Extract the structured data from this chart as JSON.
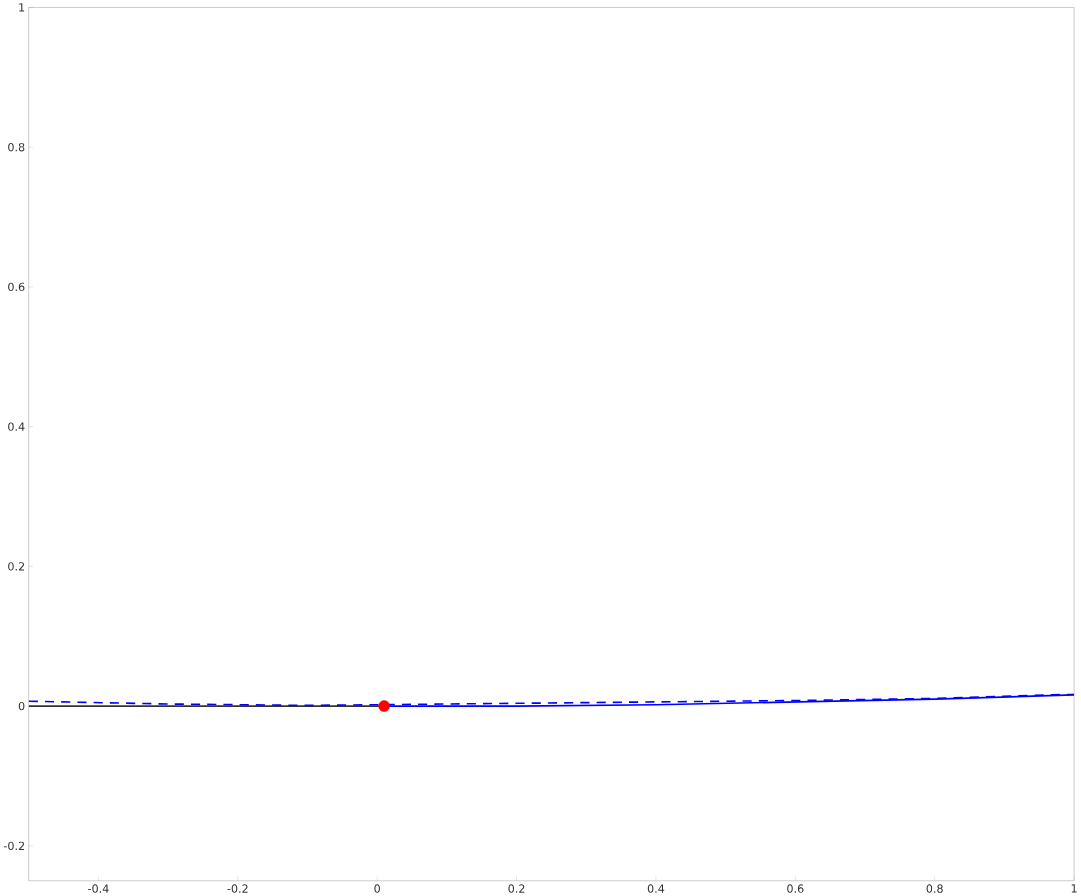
{
  "chart_data": {
    "type": "line",
    "xlim": [
      -0.5,
      1
    ],
    "ylim": [
      -0.25,
      1
    ],
    "xticks": [
      -0.4,
      -0.2,
      0,
      0.2,
      0.4,
      0.6,
      0.8,
      1
    ],
    "yticks": [
      -0.2,
      0,
      0.2,
      0.4,
      0.6,
      0.8,
      1
    ],
    "grid": false,
    "series": [
      {
        "color": "#333333",
        "line_style": "solid",
        "x": [
          -0.5,
          0.01
        ],
        "values": [
          0,
          0
        ]
      },
      {
        "color": "#0000ff",
        "line_style": "dashed",
        "x": [
          -0.5,
          -0.3,
          -0.1,
          0,
          0.2,
          0.4,
          0.6,
          0.8,
          1
        ],
        "values": [
          0.007,
          0.003,
          0.001,
          0.002,
          0.004,
          0.006,
          0.008,
          0.011,
          0.017
        ]
      },
      {
        "color": "#0000ff",
        "line_style": "solid",
        "x": [
          0.01,
          0.2,
          0.4,
          0.6,
          0.8,
          1
        ],
        "values": [
          0,
          0,
          0.002,
          0.006,
          0.01,
          0.016
        ]
      },
      {
        "type": "scatter",
        "marker": "circle",
        "color": "#ff0000",
        "x": [
          0.01
        ],
        "values": [
          0
        ]
      }
    ]
  }
}
